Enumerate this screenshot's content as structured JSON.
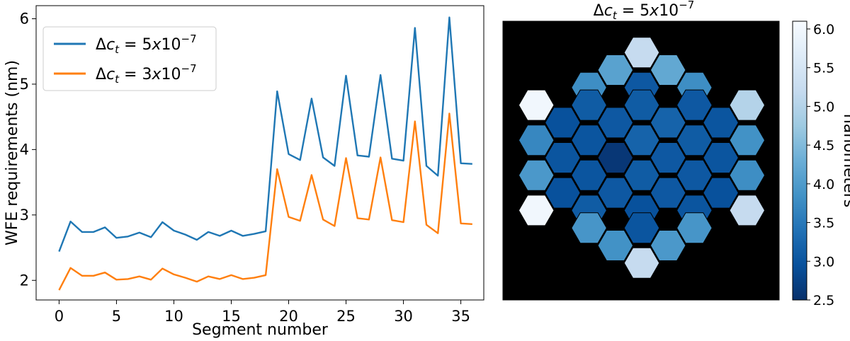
{
  "chart_data": [
    {
      "type": "line",
      "xlabel": "Segment number",
      "ylabel": "WFE requirements (nm)",
      "xlim": [
        -2,
        37
      ],
      "ylim": [
        1.7,
        6.2
      ],
      "xticks": [
        0,
        5,
        10,
        15,
        20,
        25,
        30,
        35
      ],
      "yticks": [
        2,
        3,
        4,
        5,
        6
      ],
      "legend_position": "top-left",
      "x": [
        0,
        1,
        2,
        3,
        4,
        5,
        6,
        7,
        8,
        9,
        10,
        11,
        12,
        13,
        14,
        15,
        16,
        17,
        18,
        19,
        20,
        21,
        22,
        23,
        24,
        25,
        26,
        27,
        28,
        29,
        30,
        31,
        32,
        33,
        34,
        35,
        36
      ],
      "series": [
        {
          "name": "Δc_t = 5x10^-7",
          "name_main": "Δ",
          "name_var": "c",
          "name_sub": "t",
          "name_rest": " = 5",
          "name_x": "x",
          "name_base": "10",
          "name_exp": "−7",
          "color": "#1f77b4",
          "values": [
            2.44,
            2.9,
            2.74,
            2.74,
            2.81,
            2.65,
            2.67,
            2.73,
            2.66,
            2.89,
            2.76,
            2.7,
            2.62,
            2.74,
            2.68,
            2.76,
            2.68,
            2.71,
            2.75,
            4.89,
            3.93,
            3.84,
            4.78,
            3.88,
            3.75,
            5.13,
            3.91,
            3.89,
            5.14,
            3.86,
            3.83,
            5.86,
            3.75,
            3.6,
            6.02,
            3.79,
            3.78
          ]
        },
        {
          "name": "Δc_t = 3x10^-7",
          "name_main": "Δ",
          "name_var": "c",
          "name_sub": "t",
          "name_rest": " = 3",
          "name_x": "x",
          "name_base": "10",
          "name_exp": "−7",
          "color": "#ff7f0e",
          "values": [
            1.85,
            2.19,
            2.07,
            2.07,
            2.12,
            2.01,
            2.02,
            2.06,
            2.01,
            2.18,
            2.09,
            2.04,
            1.98,
            2.06,
            2.02,
            2.08,
            2.02,
            2.04,
            2.08,
            3.7,
            2.97,
            2.91,
            3.61,
            2.93,
            2.83,
            3.87,
            2.95,
            2.93,
            3.88,
            2.92,
            2.89,
            4.43,
            2.85,
            2.72,
            4.55,
            2.87,
            2.86
          ]
        }
      ]
    },
    {
      "type": "heatmap",
      "title": "Δc_t = 5x10^-7",
      "title_main": "Δ",
      "title_var": "c",
      "title_sub": "t",
      "title_rest": " = 5",
      "title_x": "x",
      "title_base": "10",
      "title_exp": "−7",
      "background_color": "#000000",
      "colorbar_label": "nanometers",
      "colorbar_range": [
        2.5,
        6.1
      ],
      "colorbar_ticks": [
        2.5,
        3.0,
        3.5,
        4.0,
        4.5,
        5.0,
        5.5,
        6.0
      ],
      "colorbar_tick_labels": [
        "2.5",
        "3.0",
        "3.5",
        "4.0",
        "4.5",
        "5.0",
        "5.5",
        "6.0"
      ],
      "colormap": "Blues_r",
      "hex_rows": [
        [
          5.2
        ],
        [
          4.1,
          4.2
        ],
        [
          3.8,
          3.05,
          3.8
        ],
        [
          6.0,
          3.1,
          3.1,
          3.05,
          5.0
        ],
        [
          2.95,
          3.05,
          3.2,
          3.0
        ],
        [
          3.7,
          3.0,
          3.2,
          3.1,
          3.85
        ],
        [
          3.0,
          2.6,
          3.05,
          3.0
        ],
        [
          3.95,
          3.0,
          3.1,
          3.05,
          3.8
        ],
        [
          2.95,
          3.05,
          3.05,
          2.95
        ],
        [
          6.0,
          3.1,
          2.95,
          3.0,
          5.2
        ],
        [
          3.9,
          3.0,
          3.9
        ],
        [
          3.85,
          3.95
        ],
        [
          5.2
        ]
      ]
    }
  ]
}
